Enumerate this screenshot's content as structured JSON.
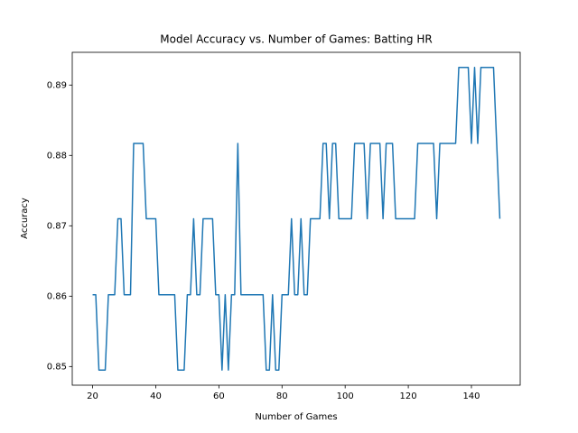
{
  "chart_data": {
    "type": "line",
    "title": "Model Accuracy vs. Number of Games: Batting HR",
    "xlabel": "Number of Games",
    "ylabel": "Accuracy",
    "x": [
      20,
      21,
      22,
      23,
      24,
      25,
      26,
      27,
      28,
      29,
      30,
      31,
      32,
      33,
      34,
      35,
      36,
      37,
      38,
      39,
      40,
      41,
      42,
      43,
      44,
      45,
      46,
      47,
      48,
      49,
      50,
      51,
      52,
      53,
      54,
      55,
      56,
      57,
      58,
      59,
      60,
      61,
      62,
      63,
      64,
      65,
      66,
      67,
      68,
      69,
      70,
      71,
      72,
      73,
      74,
      75,
      76,
      77,
      78,
      79,
      80,
      81,
      82,
      83,
      84,
      85,
      86,
      87,
      88,
      89,
      90,
      91,
      92,
      93,
      94,
      95,
      96,
      97,
      98,
      99,
      100,
      101,
      102,
      103,
      104,
      105,
      106,
      107,
      108,
      109,
      110,
      111,
      112,
      113,
      114,
      115,
      116,
      117,
      118,
      119,
      120,
      121,
      122,
      123,
      124,
      125,
      126,
      127,
      128,
      129,
      130,
      131,
      132,
      133,
      134,
      135,
      136,
      137,
      138,
      139,
      140,
      141,
      142,
      143,
      144,
      145,
      146,
      147,
      148,
      149
    ],
    "series": [
      {
        "color": "#1f77b4",
        "values": [
          0.8602,
          0.8602,
          0.8495,
          0.8495,
          0.8495,
          0.8602,
          0.8602,
          0.8602,
          0.871,
          0.871,
          0.8602,
          0.8602,
          0.8602,
          0.8817,
          0.8817,
          0.8817,
          0.8817,
          0.871,
          0.871,
          0.871,
          0.871,
          0.8602,
          0.8602,
          0.8602,
          0.8602,
          0.8602,
          0.8602,
          0.8495,
          0.8495,
          0.8495,
          0.8602,
          0.8602,
          0.871,
          0.8602,
          0.8602,
          0.871,
          0.871,
          0.871,
          0.871,
          0.8602,
          0.8602,
          0.8495,
          0.8602,
          0.8495,
          0.8602,
          0.8602,
          0.8817,
          0.8602,
          0.8602,
          0.8602,
          0.8602,
          0.8602,
          0.8602,
          0.8602,
          0.8602,
          0.8495,
          0.8495,
          0.8602,
          0.8495,
          0.8495,
          0.8602,
          0.8602,
          0.8602,
          0.871,
          0.8602,
          0.8602,
          0.871,
          0.8602,
          0.8602,
          0.871,
          0.871,
          0.871,
          0.871,
          0.8817,
          0.8817,
          0.871,
          0.8817,
          0.8817,
          0.871,
          0.871,
          0.871,
          0.871,
          0.871,
          0.8817,
          0.8817,
          0.8817,
          0.8817,
          0.871,
          0.8817,
          0.8817,
          0.8817,
          0.8817,
          0.871,
          0.8817,
          0.8817,
          0.8817,
          0.871,
          0.871,
          0.871,
          0.871,
          0.871,
          0.871,
          0.871,
          0.8817,
          0.8817,
          0.8817,
          0.8817,
          0.8817,
          0.8817,
          0.871,
          0.8817,
          0.8817,
          0.8817,
          0.8817,
          0.8817,
          0.8817,
          0.8925,
          0.8925,
          0.8925,
          0.8925,
          0.8817,
          0.8925,
          0.8817,
          0.8925,
          0.8925,
          0.8925,
          0.8925,
          0.8925,
          0.8817,
          0.871
        ]
      }
    ],
    "xlim": [
      13.55,
      155.45
    ],
    "xticks": [
      20,
      40,
      60,
      80,
      100,
      120,
      140
    ],
    "ylim": [
      0.84735,
      0.89465
    ],
    "yticks": [
      0.85,
      0.86,
      0.87,
      0.88,
      0.89
    ],
    "grid": false
  }
}
